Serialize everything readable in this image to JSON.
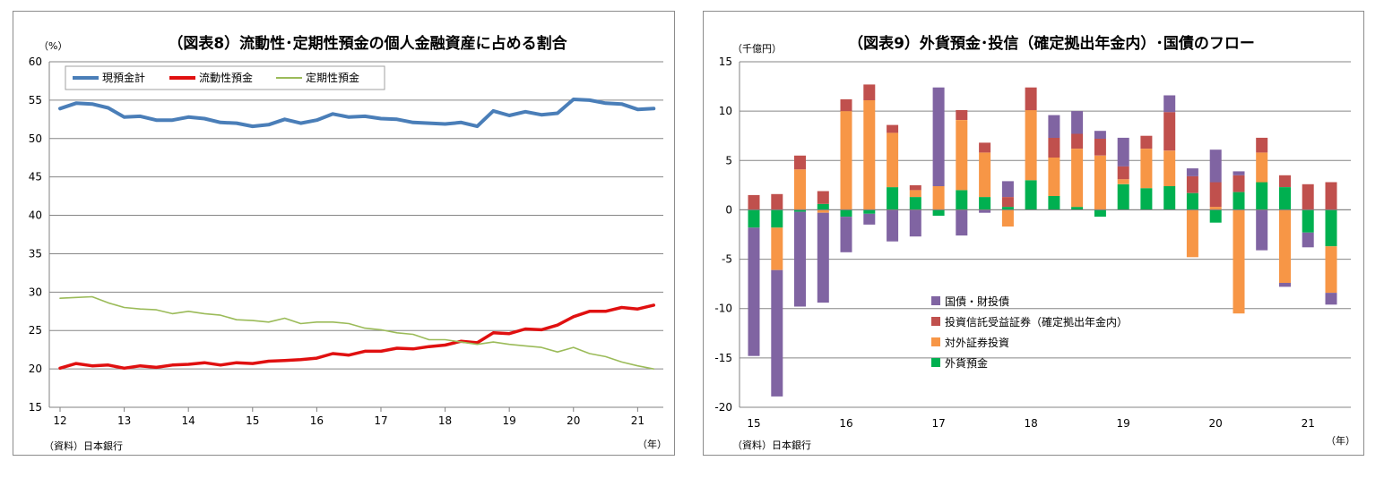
{
  "colors": {
    "cash_total": "#4a7eb8",
    "liquid": "#e01010",
    "time": "#9bbb59",
    "jgb": "#8064a2",
    "investment_trust": "#c0504d",
    "foreign_securities": "#f79646",
    "foreign_deposit": "#00b050",
    "grid": "#868686"
  },
  "chart_data": [
    {
      "type": "line",
      "title": "（図表8）流動性･定期性預金の個人金融資産に占める割合",
      "y_unit_label": "（%）",
      "source": "（資料）日本銀行",
      "x_unit_label": "（年）",
      "ylim": [
        15,
        60
      ],
      "yticks": [
        "60",
        "55",
        "50",
        "45",
        "40",
        "35",
        "30",
        "25",
        "20",
        "15"
      ],
      "xlim": [
        12,
        21.4
      ],
      "xticks": [
        "12",
        "13",
        "14",
        "15",
        "16",
        "17",
        "18",
        "19",
        "20",
        "21"
      ],
      "legend_position": "top-left",
      "grid": true,
      "x": [
        12,
        12.25,
        12.5,
        12.75,
        13,
        13.25,
        13.5,
        13.75,
        14,
        14.25,
        14.5,
        14.75,
        15,
        15.25,
        15.5,
        15.75,
        16,
        16.25,
        16.5,
        16.75,
        17,
        17.25,
        17.5,
        17.75,
        18,
        18.25,
        18.5,
        18.75,
        19,
        19.25,
        19.5,
        19.75,
        20,
        20.25,
        20.5,
        20.75,
        21,
        21.25
      ],
      "series": [
        {
          "name": "現預金計",
          "color_key": "cash_total",
          "values": [
            53.9,
            54.6,
            54.5,
            54.0,
            52.8,
            52.9,
            52.4,
            52.4,
            52.8,
            52.6,
            52.1,
            52.0,
            51.6,
            51.8,
            52.5,
            52.0,
            52.4,
            53.2,
            52.8,
            52.9,
            52.6,
            52.5,
            52.1,
            52.0,
            51.9,
            52.1,
            51.6,
            53.6,
            53.0,
            53.5,
            53.1,
            53.3,
            55.1,
            55.0,
            54.6,
            54.5,
            53.8,
            53.9
          ]
        },
        {
          "name": "流動性預金",
          "color_key": "liquid",
          "values": [
            20.1,
            20.7,
            20.4,
            20.5,
            20.1,
            20.4,
            20.2,
            20.5,
            20.6,
            20.8,
            20.5,
            20.8,
            20.7,
            21.0,
            21.1,
            21.2,
            21.4,
            22.0,
            21.8,
            22.3,
            22.3,
            22.7,
            22.6,
            22.9,
            23.1,
            23.6,
            23.4,
            24.7,
            24.6,
            25.2,
            25.1,
            25.7,
            26.8,
            27.5,
            27.5,
            28.0,
            27.8,
            28.3
          ]
        },
        {
          "name": "定期性預金",
          "color_key": "time",
          "values": [
            29.2,
            29.3,
            29.4,
            28.6,
            28.0,
            27.8,
            27.7,
            27.2,
            27.5,
            27.2,
            27.0,
            26.4,
            26.3,
            26.1,
            26.6,
            25.9,
            26.1,
            26.1,
            25.9,
            25.3,
            25.1,
            24.7,
            24.5,
            23.8,
            23.8,
            23.5,
            23.2,
            23.5,
            23.2,
            23.0,
            22.8,
            22.2,
            22.8,
            22.0,
            21.6,
            20.9,
            20.4,
            20.0
          ]
        }
      ]
    },
    {
      "type": "bar",
      "stacked": true,
      "title": "（図表9）外貨預金･投信（確定拠出年金内）･国債のフロー",
      "y_unit_label": "（千億円）",
      "source": "（資料）日本銀行",
      "x_unit_label": "（年）",
      "ylim": [
        -20,
        15
      ],
      "yticks": [
        "15",
        "10",
        "5",
        "0",
        "-5",
        "-10",
        "-15",
        "-20"
      ],
      "xticks": [
        "15",
        "16",
        "17",
        "18",
        "19",
        "20",
        "21"
      ],
      "legend_position": "bottom-left",
      "grid": true,
      "categories": [
        "15Q1",
        "15Q2",
        "15Q3",
        "15Q4",
        "16Q1",
        "16Q2",
        "16Q3",
        "16Q4",
        "17Q1",
        "17Q2",
        "17Q3",
        "17Q4",
        "18Q1",
        "18Q2",
        "18Q3",
        "18Q4",
        "19Q1",
        "19Q2",
        "19Q3",
        "19Q4",
        "20Q1",
        "20Q2",
        "20Q3",
        "20Q4",
        "21Q1",
        "21Q2"
      ],
      "series": [
        {
          "name": "外貨預金",
          "color_key": "foreign_deposit",
          "values": [
            -1.8,
            -1.8,
            -0.2,
            0.6,
            -0.7,
            -0.4,
            2.3,
            1.3,
            -0.6,
            2.0,
            1.3,
            0.3,
            3.0,
            1.4,
            0.3,
            -0.7,
            2.6,
            2.2,
            2.4,
            1.7,
            -1.3,
            1.8,
            2.8,
            2.3,
            -2.3,
            -3.7
          ]
        },
        {
          "name": "対外証券投資",
          "color_key": "foreign_securities",
          "values": [
            0,
            -4.3,
            4.1,
            -0.3,
            10.0,
            11.1,
            5.5,
            0.7,
            2.4,
            7.1,
            4.5,
            -1.7,
            7.1,
            3.9,
            5.9,
            5.5,
            0.5,
            4.0,
            3.6,
            -4.8,
            0.3,
            -10.5,
            3.0,
            -7.4,
            0,
            -4.7
          ]
        },
        {
          "name": "投資信託受益証券（確定拠出年金内）",
          "color_key": "investment_trust",
          "values": [
            1.5,
            1.6,
            1.4,
            1.3,
            1.2,
            1.6,
            0.8,
            0.5,
            0,
            1.0,
            1.0,
            1.0,
            2.3,
            2.0,
            1.5,
            1.7,
            1.3,
            1.3,
            3.9,
            1.7,
            2.5,
            1.7,
            1.5,
            1.2,
            2.6,
            2.8
          ]
        },
        {
          "name": "国債・財投債",
          "color_key": "jgb",
          "values": [
            -13.0,
            -12.8,
            -9.6,
            -9.1,
            -3.6,
            -1.1,
            -3.2,
            -2.7,
            10.0,
            -2.6,
            -0.3,
            1.6,
            0,
            2.3,
            2.3,
            0.8,
            2.9,
            0,
            1.7,
            0.8,
            3.3,
            0.4,
            -4.1,
            -0.4,
            -1.5,
            -1.2
          ]
        }
      ]
    }
  ]
}
